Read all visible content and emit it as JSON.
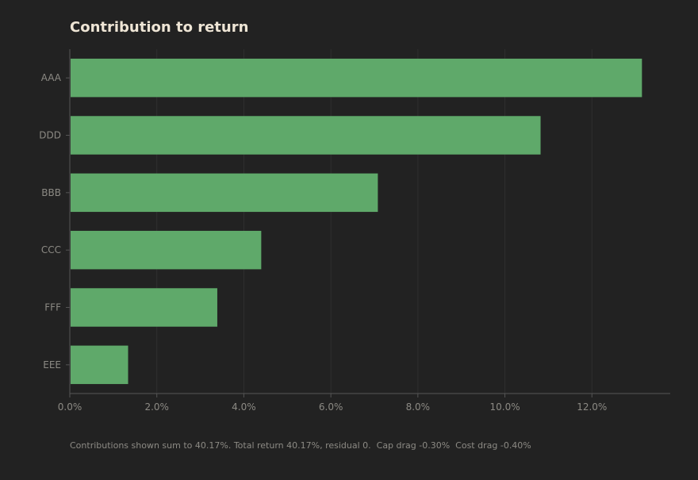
{
  "chart_data": {
    "type": "bar",
    "orientation": "horizontal",
    "title": "Contribution to return",
    "xlabel": "",
    "ylabel": "",
    "categories": [
      "AAA",
      "DDD",
      "BBB",
      "CCC",
      "FFF",
      "EEE"
    ],
    "values": [
      13.15,
      10.82,
      7.08,
      4.4,
      3.39,
      1.34
    ],
    "value_unit": "%",
    "xlim": [
      0,
      13.8
    ],
    "xticks": [
      0,
      2,
      4,
      6,
      8,
      10,
      12
    ],
    "xtick_labels": [
      "0.0%",
      "2.0%",
      "4.0%",
      "6.0%",
      "8.0%",
      "10.0%",
      "12.0%"
    ],
    "grid": "vertical",
    "bar_color": "#5fa96a",
    "background_color": "#222222",
    "footer": "Contributions shown sum to 40.17%. Total return 40.17%, residual 0.  Cap drag -0.30%  Cost drag -0.40%"
  }
}
